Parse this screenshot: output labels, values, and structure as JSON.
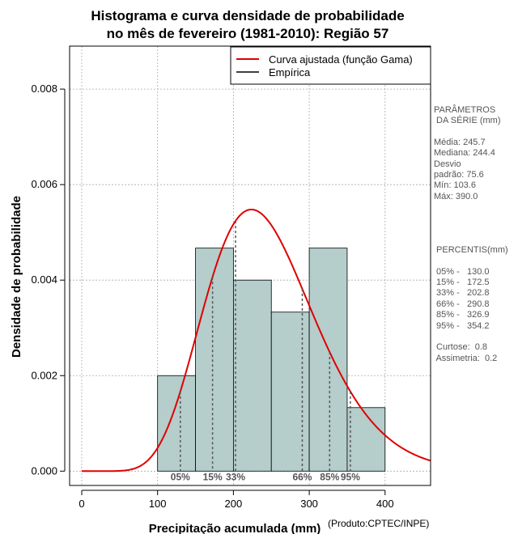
{
  "chart_data": {
    "type": "histogram",
    "title_line1": "Histograma e curva densidade de probabilidade",
    "title_line2": "no mês de fevereiro (1981-2010): Região 57",
    "xlabel": "Precipitação acumulada (mm)",
    "ylabel": "Densidade de probabilidade",
    "xlim": [
      -16,
      460
    ],
    "ylim": [
      -0.0003,
      0.0089
    ],
    "x_ticks": [
      0,
      100,
      200,
      300,
      400
    ],
    "x_tick_labels": [
      "0",
      "100",
      "200",
      "300",
      "400"
    ],
    "y_ticks": [
      0.0,
      0.002,
      0.004,
      0.006,
      0.008
    ],
    "y_tick_labels": [
      "0.000",
      "0.002",
      "0.004",
      "0.006",
      "0.008"
    ],
    "grid": true,
    "bins": [
      {
        "start": 100,
        "end": 150,
        "density": 0.002
      },
      {
        "start": 150,
        "end": 200,
        "density": 0.00467
      },
      {
        "start": 200,
        "end": 250,
        "density": 0.004
      },
      {
        "start": 250,
        "end": 300,
        "density": 0.00333
      },
      {
        "start": 300,
        "end": 350,
        "density": 0.00467
      },
      {
        "start": 350,
        "end": 400,
        "density": 0.00133
      }
    ],
    "bar_color": "#b5cdcb",
    "curve": {
      "name": "Curva ajustada (função Gama)",
      "color": "#e00000",
      "shape": 10.6,
      "scale": 23.3
    },
    "legend": [
      {
        "label": "Curva ajustada (função Gama)",
        "color": "#e00000"
      },
      {
        "label": "Empírica",
        "color": "#000000"
      }
    ],
    "legend_position": "top-right",
    "percentiles": [
      {
        "label": "05%",
        "value": 130.0
      },
      {
        "label": "15%",
        "value": 172.5
      },
      {
        "label": "33%",
        "value": 202.8
      },
      {
        "label": "66%",
        "value": 290.8
      },
      {
        "label": "85%",
        "value": 326.9
      },
      {
        "label": "95%",
        "value": 354.2
      }
    ]
  },
  "side_panel": {
    "params_title_1": "PARÂMETROS",
    "params_title_2": " DA SÉRIE (mm)",
    "media": "Média:  245.7",
    "mediana": "Mediana:  244.4",
    "desvio_1": "Desvio",
    "desvio_2": "padrão:  75.6",
    "min": "Mín:  103.6",
    "max": "Máx:  390.0",
    "percentis_title": " PERCENTIS(mm)",
    "p05": " 05% -   130.0",
    "p15": " 15% -   172.5",
    "p33": " 33% -   202.8",
    "p66": " 66% -   290.8",
    "p85": " 85% -   326.9",
    "p95": " 95% -   354.2",
    "curtose": " Curtose:  0.8",
    "assimetria": " Assimetria:  0.2"
  },
  "credit": "(Produto:CPTEC/INPE)"
}
